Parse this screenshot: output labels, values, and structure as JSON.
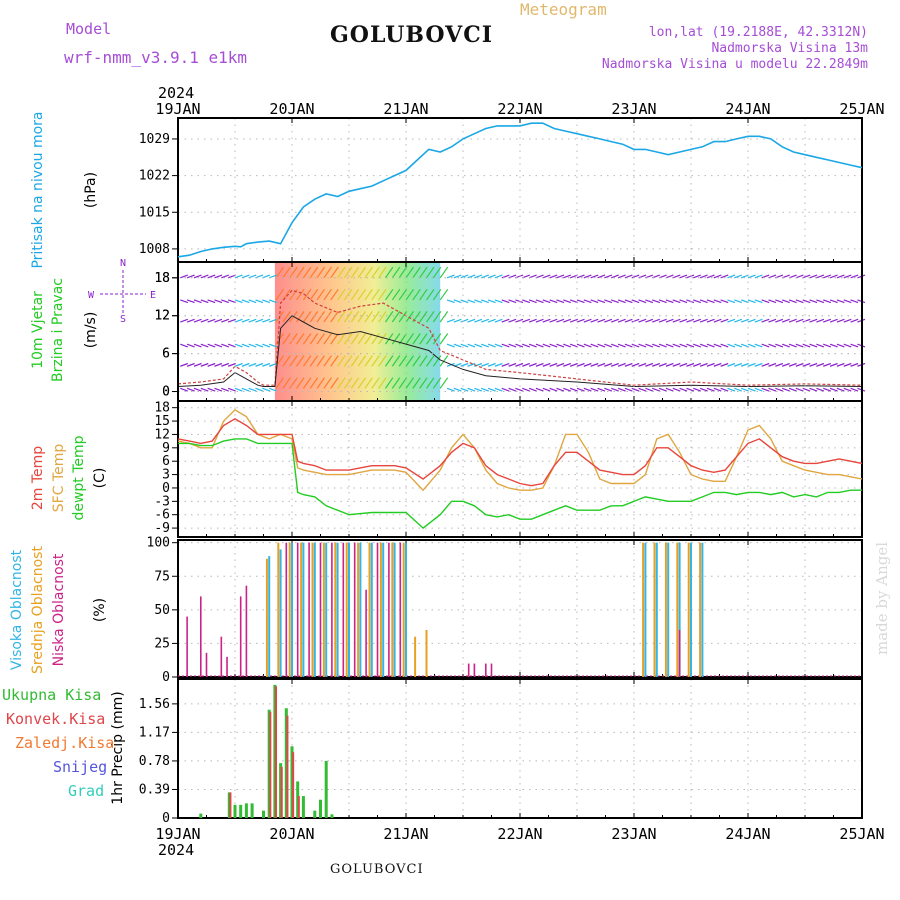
{
  "header": {
    "model_label": "Model",
    "model_name": "wrf-nmm_v3.9.1 e1km",
    "title": "GOLUBOVCI",
    "product": "Meteogram",
    "lonlat": "lon,lat (19.2188E, 42.3312N)",
    "elevation": "Nadmorska Visina 13m",
    "model_elevation": "Nadmorska Visina u modelu 22.2849m"
  },
  "footer": {
    "station": "GOLUBOVCI",
    "credit": "made by Angel"
  },
  "time_axis": {
    "year": "2024",
    "ticks": [
      "19JAN",
      "20JAN",
      "21JAN",
      "22JAN",
      "23JAN",
      "24JAN",
      "25JAN"
    ]
  },
  "colors": {
    "pressure": "#1ba7e6",
    "temp2m": "#e8453c",
    "sfc_temp": "#e0a640",
    "dewpoint": "#22cc22",
    "high_cloud": "#33b5e5",
    "mid_cloud": "#e8a020",
    "low_cloud": "#cc2288",
    "total_precip": "#33bb33",
    "conv_precip": "#e0454a",
    "frozen_precip": "#f07a30",
    "snow": "#5555dd",
    "hail": "#33ccbb",
    "wind_label": "#22cc22",
    "wind_strong": "#22b8e8",
    "wind_weak": "#8a22cc"
  },
  "chart_data": [
    {
      "type": "line",
      "panel": "pressure",
      "ylabel": [
        "Pritisak na nivou mora",
        "(hPa)"
      ],
      "yticks": [
        1008,
        1015,
        1022,
        1029
      ],
      "ylim": [
        1005.5,
        1033
      ],
      "grid": true,
      "x": [
        0,
        0.1,
        0.2,
        0.3,
        0.4,
        0.5,
        0.55,
        0.6,
        0.7,
        0.8,
        0.9,
        1.0,
        1.1,
        1.2,
        1.3,
        1.4,
        1.5,
        1.6,
        1.7,
        1.8,
        1.9,
        2.0,
        2.1,
        2.2,
        2.3,
        2.4,
        2.5,
        2.6,
        2.7,
        2.8,
        2.9,
        3.0,
        3.1,
        3.2,
        3.3,
        3.4,
        3.5,
        3.6,
        3.7,
        3.8,
        3.9,
        4.0,
        4.1,
        4.2,
        4.3,
        4.4,
        4.5,
        4.6,
        4.7,
        4.8,
        4.9,
        5.0,
        5.1,
        5.2,
        5.3,
        5.4,
        5.5,
        5.6,
        5.7,
        5.8,
        5.9,
        6.0
      ],
      "series": [
        {
          "values": [
            1006.5,
            1006.8,
            1007.5,
            1008.0,
            1008.3,
            1008.5,
            1008.4,
            1009.0,
            1009.3,
            1009.5,
            1009.0,
            1013.0,
            1016.0,
            1017.5,
            1018.5,
            1018.0,
            1019.0,
            1019.5,
            1020.0,
            1021.0,
            1022.0,
            1023.0,
            1025.0,
            1027.0,
            1026.5,
            1027.5,
            1029.0,
            1030.0,
            1031.0,
            1031.5,
            1031.5,
            1031.5,
            1032.0,
            1032.0,
            1031.0,
            1030.5,
            1030.0,
            1029.5,
            1029.0,
            1028.5,
            1028.0,
            1027.0,
            1027.0,
            1026.5,
            1026.0,
            1026.5,
            1027.0,
            1027.5,
            1028.5,
            1028.5,
            1029.0,
            1029.5,
            1029.5,
            1029.0,
            1027.5,
            1026.5,
            1026.0,
            1025.5,
            1025.0,
            1024.5,
            1024.0,
            1023.5
          ]
        }
      ]
    },
    {
      "type": "line",
      "panel": "wind",
      "ylabel": [
        "10m Vjetar",
        "Brzina i Pravac",
        "(m/s)"
      ],
      "yticks": [
        0,
        6,
        12,
        18
      ],
      "ylim": [
        -1.5,
        20.5
      ],
      "grid": true,
      "compass": [
        "N",
        "W",
        "E",
        "S"
      ],
      "x": [
        0,
        0.2,
        0.4,
        0.5,
        0.6,
        0.7,
        0.75,
        0.85,
        0.9,
        1.0,
        1.1,
        1.2,
        1.4,
        1.6,
        1.8,
        2.0,
        2.2,
        2.3,
        2.5,
        2.7,
        3.0,
        3.5,
        4.0,
        4.5,
        5.0,
        5.5,
        6.0
      ],
      "series": [
        {
          "values": [
            1.2,
            1.5,
            2.0,
            4.0,
            3.0,
            1.5,
            1.0,
            1.0,
            14.0,
            16.0,
            15.5,
            14.0,
            12.5,
            13.5,
            14.0,
            12.0,
            10.0,
            6.5,
            5.0,
            3.5,
            3.0,
            2.0,
            1.0,
            1.5,
            1.0,
            1.2,
            1.0
          ]
        },
        {
          "values": [
            0.8,
            1.0,
            1.5,
            3.0,
            2.0,
            1.0,
            0.8,
            0.8,
            10.0,
            12.0,
            11.0,
            10.0,
            9.0,
            9.5,
            8.5,
            7.5,
            6.5,
            5.0,
            3.5,
            2.5,
            2.0,
            1.5,
            0.8,
            1.0,
            0.8,
            0.9,
            0.8
          ]
        }
      ]
    },
    {
      "type": "line",
      "panel": "temperature",
      "ylabel": [
        "2m Temp",
        "SFC Temp",
        "dewpt Temp",
        "(C)"
      ],
      "yticks": [
        -9,
        -6,
        -3,
        0,
        3,
        6,
        9,
        12,
        15,
        18
      ],
      "ylim": [
        -11,
        19.5
      ],
      "grid": true,
      "x": [
        0,
        0.1,
        0.2,
        0.3,
        0.4,
        0.5,
        0.6,
        0.7,
        0.8,
        0.9,
        1.0,
        1.05,
        1.1,
        1.2,
        1.3,
        1.5,
        1.7,
        1.9,
        2.0,
        2.15,
        2.3,
        2.4,
        2.5,
        2.6,
        2.7,
        2.8,
        2.9,
        3.0,
        3.1,
        3.2,
        3.3,
        3.4,
        3.5,
        3.6,
        3.7,
        3.8,
        3.9,
        4.0,
        4.1,
        4.2,
        4.3,
        4.4,
        4.5,
        4.6,
        4.7,
        4.8,
        4.9,
        5.0,
        5.1,
        5.2,
        5.3,
        5.4,
        5.5,
        5.6,
        5.7,
        5.8,
        5.9,
        6.0
      ],
      "series": [
        {
          "name": "2m Temp",
          "values": [
            11,
            10.5,
            10,
            10.5,
            14,
            15.5,
            14,
            12,
            12,
            12,
            12,
            6,
            5.5,
            5,
            4,
            4,
            5,
            5,
            4.5,
            2,
            5,
            8,
            10,
            9,
            5,
            3,
            2,
            1,
            0.5,
            1,
            5,
            8,
            8,
            6,
            4,
            3.5,
            3,
            3,
            5,
            9,
            9,
            7,
            5,
            4,
            3.5,
            4,
            7,
            10,
            11,
            9,
            7,
            6,
            5.5,
            5.5,
            6,
            6.5,
            6,
            5.5
          ]
        },
        {
          "name": "SFC Temp",
          "values": [
            10.5,
            10,
            9,
            9,
            15,
            17.5,
            16,
            12,
            11,
            12,
            11,
            4.5,
            4,
            3.5,
            3,
            3,
            4,
            4,
            3.5,
            -0.5,
            4,
            9,
            12,
            9,
            4,
            1,
            0,
            -0.5,
            -0.5,
            0,
            5,
            12,
            12,
            8,
            2,
            1,
            1,
            1,
            3,
            11,
            12,
            8,
            3,
            2,
            1.5,
            1.5,
            7,
            13,
            14,
            11,
            6,
            5,
            4,
            3.5,
            3,
            3,
            2.5,
            2
          ]
        },
        {
          "name": "dewpt Temp",
          "values": [
            10,
            10,
            9.5,
            9.5,
            10.5,
            11,
            11,
            10,
            10,
            10,
            10,
            -1,
            -1.5,
            -2,
            -4,
            -6,
            -5.5,
            -5.5,
            -5.5,
            -9,
            -6,
            -3,
            -3,
            -4,
            -6,
            -6.5,
            -6,
            -7,
            -7,
            -6,
            -5,
            -4,
            -5,
            -5,
            -5,
            -4,
            -4,
            -3,
            -2,
            -2.5,
            -3,
            -3,
            -3,
            -2,
            -1,
            -1,
            -1.5,
            -1,
            -1,
            -1.5,
            -1,
            -2,
            -1.5,
            -2,
            -1,
            -1,
            -0.5,
            -0.5
          ]
        }
      ]
    },
    {
      "type": "bar",
      "panel": "clouds",
      "ylabel": [
        "Visoka Oblacnost",
        "Srednja Oblacnost",
        "Niska Oblacnost",
        "(%)"
      ],
      "yticks": [
        0,
        25,
        50,
        75,
        100
      ],
      "ylim": [
        0,
        102
      ],
      "grid": true,
      "series": [
        {
          "name": "Visoka Oblacnost",
          "x": [
            0.8,
            0.9,
            1.0,
            1.1,
            1.2,
            1.3,
            1.4,
            1.5,
            1.6,
            1.7,
            1.8,
            1.9,
            2.0,
            4.1,
            4.2,
            4.3,
            4.4,
            4.5,
            4.6
          ],
          "values": [
            90,
            95,
            100,
            100,
            100,
            100,
            100,
            100,
            100,
            100,
            100,
            100,
            100,
            100,
            100,
            100,
            100,
            100,
            100
          ]
        },
        {
          "name": "Srednja Oblacnost",
          "x": [
            0.78,
            0.88,
            0.98,
            1.08,
            1.18,
            1.28,
            1.38,
            1.48,
            1.58,
            1.68,
            1.78,
            1.88,
            1.98,
            2.08,
            2.18,
            4.08,
            4.18,
            4.28,
            4.38,
            4.48,
            4.58
          ],
          "values": [
            88,
            100,
            100,
            100,
            100,
            100,
            100,
            100,
            100,
            100,
            100,
            100,
            100,
            30,
            35,
            100,
            100,
            100,
            100,
            100,
            100
          ]
        },
        {
          "name": "Niska Oblacnost",
          "x": [
            0.08,
            0.2,
            0.25,
            0.38,
            0.43,
            0.55,
            0.6,
            0.95,
            1.05,
            1.15,
            1.25,
            1.35,
            1.45,
            1.55,
            1.65,
            1.75,
            1.85,
            1.95,
            2.55,
            2.6,
            2.7,
            2.75,
            4.4
          ],
          "values": [
            45,
            60,
            18,
            30,
            15,
            60,
            68,
            100,
            100,
            100,
            100,
            100,
            100,
            100,
            65,
            100,
            100,
            100,
            10,
            10,
            10,
            10,
            35
          ]
        }
      ]
    },
    {
      "type": "bar",
      "panel": "precipitation",
      "ylabel": [
        "1hr Precip (mm)"
      ],
      "legend": [
        "Ukupna Kisa",
        "Konvek.Kisa",
        "Zaledj.Kisa",
        "Snijeg",
        "Grad"
      ],
      "yticks": [
        0,
        0.39,
        0.78,
        1.17,
        1.56
      ],
      "ylim": [
        0,
        1.9
      ],
      "grid": true,
      "series": [
        {
          "name": "Ukupna Kisa",
          "x": [
            0.2,
            0.45,
            0.5,
            0.55,
            0.6,
            0.65,
            0.75,
            0.8,
            0.85,
            0.9,
            0.95,
            1.0,
            1.05,
            1.1,
            1.2,
            1.25,
            1.3,
            1.35
          ],
          "values": [
            0.06,
            0.35,
            0.18,
            0.18,
            0.2,
            0.2,
            0.1,
            1.48,
            1.82,
            0.75,
            1.5,
            0.98,
            0.5,
            0.3,
            0.1,
            0.25,
            0.78,
            0.05
          ]
        },
        {
          "name": "Konvek.Kisa",
          "x": [
            0.46,
            0.81,
            0.86,
            0.91,
            0.96,
            1.01,
            1.06
          ],
          "values": [
            0.35,
            1.45,
            1.8,
            0.7,
            1.4,
            0.9,
            0.3
          ]
        }
      ]
    }
  ]
}
